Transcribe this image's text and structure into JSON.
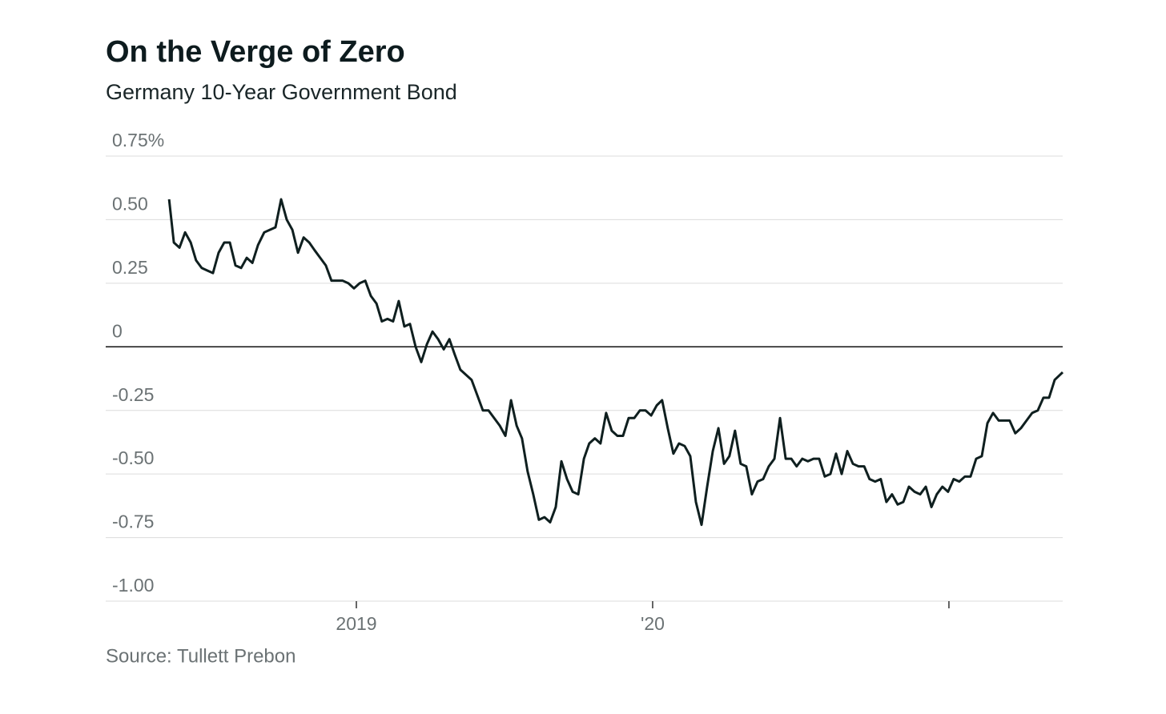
{
  "chart_data": {
    "type": "line",
    "title": "On the Verge of Zero",
    "subtitle": "Germany 10-Year Government Bond",
    "source": "Source: Tullett Prebon",
    "xlim": [
      2018.154,
      2021.384
    ],
    "xticks": [
      2019,
      {
        "value": 2020,
        "label": "'20"
      },
      {
        "value": 2021,
        "label": null
      }
    ],
    "ylim": [
      -1.0,
      0.75
    ],
    "yticks": [
      {
        "value": 0.75,
        "label": "0.75%"
      },
      {
        "value": 0.5,
        "label": "0.50"
      },
      0.25,
      0,
      -0.25,
      {
        "value": -0.5,
        "label": "-0.50"
      },
      -0.75,
      {
        "value": -1.0,
        "label": "-1.00"
      }
    ],
    "grid": true,
    "series": [
      {
        "name": "Germany 10-Year Government Bond",
        "color": "#0f1f1f",
        "x": [
          2018.368,
          2018.384,
          2018.403,
          2018.422,
          2018.441,
          2018.459,
          2018.478,
          2018.497,
          2018.516,
          2018.535,
          2018.554,
          2018.573,
          2018.592,
          2018.611,
          2018.63,
          2018.649,
          2018.668,
          2018.689,
          2018.708,
          2018.727,
          2018.746,
          2018.765,
          2018.784,
          2018.803,
          2018.822,
          2018.841,
          2018.859,
          2018.878,
          2018.897,
          2018.916,
          2018.935,
          2018.954,
          2018.973,
          2018.992,
          2019.011,
          2019.03,
          2019.049,
          2019.068,
          2019.086,
          2019.105,
          2019.124,
          2019.143,
          2019.162,
          2019.181,
          2019.2,
          2019.219,
          2019.238,
          2019.257,
          2019.276,
          2019.295,
          2019.314,
          2019.332,
          2019.351,
          2019.37,
          2019.389,
          2019.408,
          2019.427,
          2019.446,
          2019.465,
          2019.484,
          2019.503,
          2019.522,
          2019.541,
          2019.559,
          2019.578,
          2019.597,
          2019.616,
          2019.635,
          2019.654,
          2019.673,
          2019.692,
          2019.711,
          2019.73,
          2019.749,
          2019.768,
          2019.786,
          2019.805,
          2019.824,
          2019.843,
          2019.862,
          2019.881,
          2019.9,
          2019.919,
          2019.938,
          2019.957,
          2019.976,
          2019.995,
          2020.014,
          2020.032,
          2020.051,
          2020.07,
          2020.089,
          2020.108,
          2020.127,
          2020.146,
          2020.165,
          2020.184,
          2020.203,
          2020.222,
          2020.241,
          2020.259,
          2020.278,
          2020.297,
          2020.316,
          2020.335,
          2020.354,
          2020.373,
          2020.392,
          2020.411,
          2020.43,
          2020.449,
          2020.468,
          2020.486,
          2020.505,
          2020.524,
          2020.543,
          2020.562,
          2020.581,
          2020.6,
          2020.619,
          2020.638,
          2020.657,
          2020.676,
          2020.695,
          2020.714,
          2020.732,
          2020.751,
          2020.77,
          2020.789,
          2020.808,
          2020.827,
          2020.846,
          2020.865,
          2020.884,
          2020.903,
          2020.922,
          2020.941,
          2020.959,
          2020.978,
          2020.997,
          2021.016,
          2021.035,
          2021.054,
          2021.073,
          2021.092,
          2021.111,
          2021.13,
          2021.149,
          2021.168,
          2021.186,
          2021.205,
          2021.224,
          2021.243,
          2021.262,
          2021.281,
          2021.3,
          2021.319,
          2021.338,
          2021.357,
          2021.384
        ],
        "values": [
          0.58,
          0.41,
          0.39,
          0.45,
          0.41,
          0.34,
          0.31,
          0.3,
          0.29,
          0.37,
          0.41,
          0.41,
          0.32,
          0.31,
          0.35,
          0.33,
          0.4,
          0.45,
          0.46,
          0.47,
          0.58,
          0.5,
          0.46,
          0.37,
          0.43,
          0.41,
          0.38,
          0.35,
          0.32,
          0.26,
          0.26,
          0.26,
          0.25,
          0.23,
          0.25,
          0.26,
          0.2,
          0.17,
          0.1,
          0.11,
          0.1,
          0.18,
          0.08,
          0.09,
          0,
          -0.06,
          0.01,
          0.06,
          0.03,
          -0.01,
          0.03,
          -0.03,
          -0.09,
          -0.11,
          -0.13,
          -0.19,
          -0.25,
          -0.25,
          -0.28,
          -0.31,
          -0.35,
          -0.21,
          -0.31,
          -0.36,
          -0.49,
          -0.58,
          -0.68,
          -0.67,
          -0.69,
          -0.63,
          -0.45,
          -0.52,
          -0.57,
          -0.58,
          -0.44,
          -0.38,
          -0.36,
          -0.38,
          -0.26,
          -0.33,
          -0.35,
          -0.35,
          -0.28,
          -0.28,
          -0.25,
          -0.25,
          -0.27,
          -0.23,
          -0.21,
          -0.32,
          -0.42,
          -0.38,
          -0.39,
          -0.43,
          -0.61,
          -0.7,
          -0.55,
          -0.41,
          -0.32,
          -0.46,
          -0.43,
          -0.33,
          -0.46,
          -0.47,
          -0.58,
          -0.53,
          -0.52,
          -0.47,
          -0.44,
          -0.28,
          -0.44,
          -0.44,
          -0.47,
          -0.44,
          -0.45,
          -0.44,
          -0.44,
          -0.51,
          -0.5,
          -0.42,
          -0.5,
          -0.41,
          -0.46,
          -0.47,
          -0.47,
          -0.52,
          -0.53,
          -0.52,
          -0.61,
          -0.58,
          -0.62,
          -0.61,
          -0.55,
          -0.57,
          -0.58,
          -0.55,
          -0.63,
          -0.58,
          -0.55,
          -0.57,
          -0.52,
          -0.53,
          -0.51,
          -0.51,
          -0.44,
          -0.43,
          -0.3,
          -0.26,
          -0.29,
          -0.29,
          -0.29,
          -0.34,
          -0.32,
          -0.29,
          -0.26,
          -0.25,
          -0.2,
          -0.2,
          -0.13,
          -0.1
        ]
      }
    ]
  }
}
